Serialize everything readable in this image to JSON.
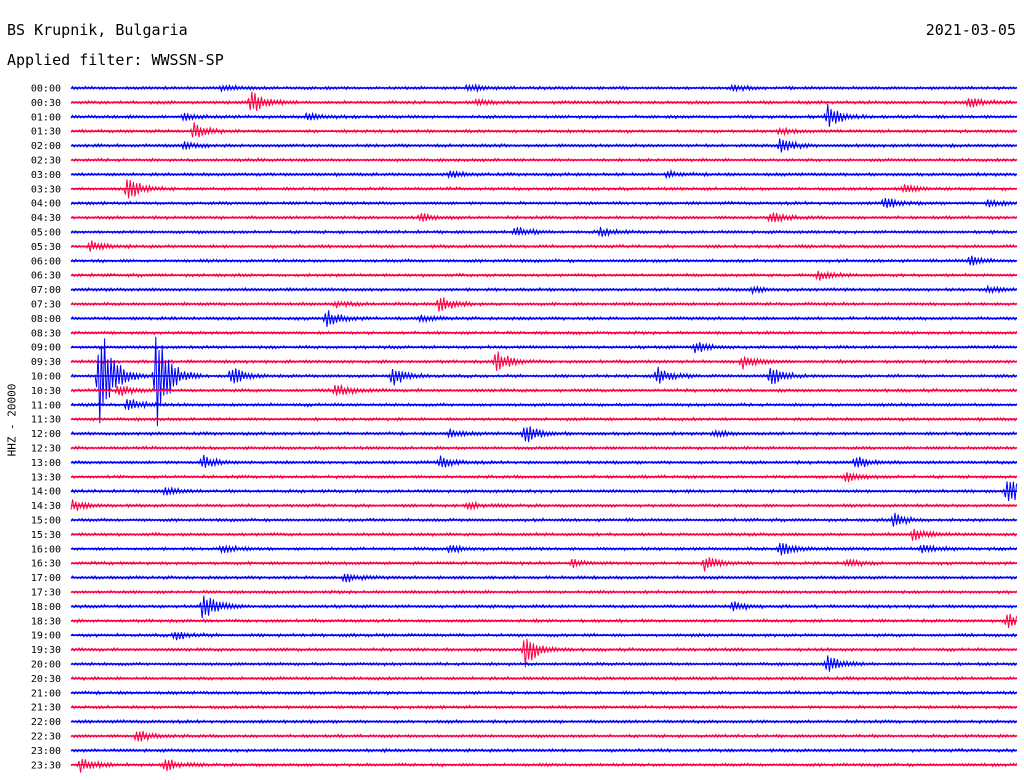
{
  "header": {
    "station": "BS Krupnik, Bulgaria",
    "filter": "Applied filter: WWSSN-SP",
    "date": "2021-03-05"
  },
  "chart_data": {
    "type": "line",
    "ylabel": "HHZ - 20000",
    "tick_labels": [
      "00:00",
      "00:30",
      "01:00",
      "01:30",
      "02:00",
      "02:30",
      "03:00",
      "03:30",
      "04:00",
      "04:30",
      "05:00",
      "05:30",
      "06:00",
      "06:30",
      "07:00",
      "07:30",
      "08:00",
      "08:30",
      "09:00",
      "09:30",
      "10:00",
      "10:30",
      "11:00",
      "11:30",
      "12:00",
      "12:30",
      "13:00",
      "13:30",
      "14:00",
      "14:30",
      "15:00",
      "15:30",
      "16:00",
      "16:30",
      "17:00",
      "17:30",
      "18:00",
      "18:30",
      "19:00",
      "19:30",
      "20:00",
      "20:30",
      "21:00",
      "21:30",
      "22:00",
      "22:30",
      "23:00",
      "23:30"
    ],
    "x_range_minutes": [
      0,
      30
    ],
    "colors": [
      "#0000ff",
      "#ff0044"
    ],
    "events": [
      {
        "trace": 0,
        "x": 0.16,
        "amp": 3
      },
      {
        "trace": 0,
        "x": 0.42,
        "amp": 4
      },
      {
        "trace": 0,
        "x": 0.7,
        "amp": 3
      },
      {
        "trace": 1,
        "x": 0.19,
        "amp": 13
      },
      {
        "trace": 1,
        "x": 0.43,
        "amp": 3
      },
      {
        "trace": 1,
        "x": 0.95,
        "amp": 6
      },
      {
        "trace": 2,
        "x": 0.12,
        "amp": 3
      },
      {
        "trace": 2,
        "x": 0.25,
        "amp": 4
      },
      {
        "trace": 2,
        "x": 0.8,
        "amp": 12
      },
      {
        "trace": 3,
        "x": 0.13,
        "amp": 8
      },
      {
        "trace": 3,
        "x": 0.75,
        "amp": 3
      },
      {
        "trace": 4,
        "x": 0.75,
        "amp": 8
      },
      {
        "trace": 4,
        "x": 0.12,
        "amp": 3
      },
      {
        "trace": 6,
        "x": 0.4,
        "amp": 3
      },
      {
        "trace": 6,
        "x": 0.63,
        "amp": 3
      },
      {
        "trace": 7,
        "x": 0.06,
        "amp": 13
      },
      {
        "trace": 7,
        "x": 0.88,
        "amp": 4
      },
      {
        "trace": 8,
        "x": 0.86,
        "amp": 6
      },
      {
        "trace": 8,
        "x": 0.97,
        "amp": 4
      },
      {
        "trace": 9,
        "x": 0.37,
        "amp": 4
      },
      {
        "trace": 9,
        "x": 0.74,
        "amp": 6
      },
      {
        "trace": 10,
        "x": 0.47,
        "amp": 5
      },
      {
        "trace": 10,
        "x": 0.56,
        "amp": 4
      },
      {
        "trace": 11,
        "x": 0.02,
        "amp": 5
      },
      {
        "trace": 12,
        "x": 0.95,
        "amp": 5
      },
      {
        "trace": 13,
        "x": 0.79,
        "amp": 5
      },
      {
        "trace": 14,
        "x": 0.72,
        "amp": 3
      },
      {
        "trace": 14,
        "x": 0.97,
        "amp": 3
      },
      {
        "trace": 15,
        "x": 0.39,
        "amp": 9
      },
      {
        "trace": 15,
        "x": 0.28,
        "amp": 3
      },
      {
        "trace": 16,
        "x": 0.27,
        "amp": 9
      },
      {
        "trace": 16,
        "x": 0.37,
        "amp": 3
      },
      {
        "trace": 18,
        "x": 0.66,
        "amp": 6
      },
      {
        "trace": 19,
        "x": 0.45,
        "amp": 12
      },
      {
        "trace": 19,
        "x": 0.71,
        "amp": 7
      },
      {
        "trace": 20,
        "x": 0.03,
        "amp": 60
      },
      {
        "trace": 20,
        "x": 0.09,
        "amp": 55
      },
      {
        "trace": 20,
        "x": 0.17,
        "amp": 10
      },
      {
        "trace": 20,
        "x": 0.34,
        "amp": 10
      },
      {
        "trace": 20,
        "x": 0.62,
        "amp": 8
      },
      {
        "trace": 20,
        "x": 0.74,
        "amp": 11
      },
      {
        "trace": 21,
        "x": 0.28,
        "amp": 8
      },
      {
        "trace": 21,
        "x": 0.05,
        "amp": 6
      },
      {
        "trace": 22,
        "x": 0.06,
        "amp": 8
      },
      {
        "trace": 24,
        "x": 0.48,
        "amp": 10
      },
      {
        "trace": 24,
        "x": 0.4,
        "amp": 4
      },
      {
        "trace": 24,
        "x": 0.68,
        "amp": 4
      },
      {
        "trace": 26,
        "x": 0.14,
        "amp": 7
      },
      {
        "trace": 26,
        "x": 0.39,
        "amp": 6
      },
      {
        "trace": 26,
        "x": 0.83,
        "amp": 6
      },
      {
        "trace": 27,
        "x": 0.82,
        "amp": 5
      },
      {
        "trace": 28,
        "x": 0.99,
        "amp": 16
      },
      {
        "trace": 28,
        "x": 0.1,
        "amp": 4
      },
      {
        "trace": 29,
        "x": 0.0,
        "amp": 6
      },
      {
        "trace": 29,
        "x": 0.42,
        "amp": 3
      },
      {
        "trace": 30,
        "x": 0.87,
        "amp": 7
      },
      {
        "trace": 31,
        "x": 0.89,
        "amp": 6
      },
      {
        "trace": 32,
        "x": 0.75,
        "amp": 8
      },
      {
        "trace": 32,
        "x": 0.16,
        "amp": 4
      },
      {
        "trace": 32,
        "x": 0.4,
        "amp": 4
      },
      {
        "trace": 32,
        "x": 0.9,
        "amp": 4
      },
      {
        "trace": 33,
        "x": 0.67,
        "amp": 8
      },
      {
        "trace": 33,
        "x": 0.53,
        "amp": 4
      },
      {
        "trace": 33,
        "x": 0.82,
        "amp": 4
      },
      {
        "trace": 34,
        "x": 0.29,
        "amp": 5
      },
      {
        "trace": 36,
        "x": 0.14,
        "amp": 16
      },
      {
        "trace": 36,
        "x": 0.7,
        "amp": 5
      },
      {
        "trace": 37,
        "x": 0.99,
        "amp": 8
      },
      {
        "trace": 38,
        "x": 0.11,
        "amp": 5
      },
      {
        "trace": 39,
        "x": 0.48,
        "amp": 18
      },
      {
        "trace": 40,
        "x": 0.8,
        "amp": 9
      },
      {
        "trace": 45,
        "x": 0.07,
        "amp": 7
      },
      {
        "trace": 47,
        "x": 0.01,
        "amp": 8
      },
      {
        "trace": 47,
        "x": 0.1,
        "amp": 6
      }
    ]
  }
}
